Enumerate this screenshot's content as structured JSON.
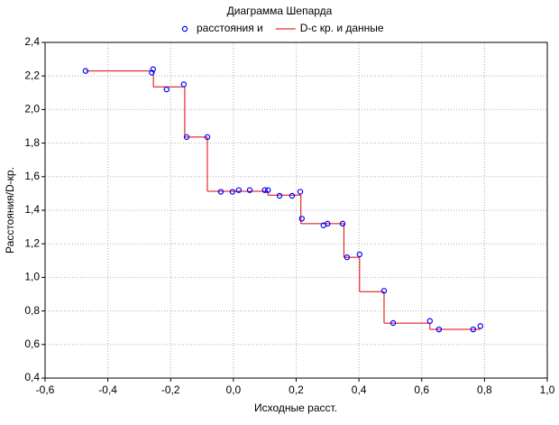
{
  "chart_data": {
    "type": "scatter",
    "title": "Диаграмма Шепарда",
    "x_label": "Исходные расст.",
    "y_label": "Расстояния/D-кр.",
    "xlim": [
      -0.6,
      1.0
    ],
    "ylim": [
      0.4,
      2.4
    ],
    "xticks": [
      {
        "value": -0.6,
        "label": "-0,6"
      },
      {
        "value": -0.4,
        "label": "-0,4"
      },
      {
        "value": -0.2,
        "label": "-0,2"
      },
      {
        "value": 0.0,
        "label": "0,0"
      },
      {
        "value": 0.2,
        "label": "0,2"
      },
      {
        "value": 0.4,
        "label": "0,4"
      },
      {
        "value": 0.6,
        "label": "0,6"
      },
      {
        "value": 0.8,
        "label": "0,8"
      },
      {
        "value": 1.0,
        "label": "1,0"
      }
    ],
    "yticks": [
      {
        "value": 0.4,
        "label": "0,4"
      },
      {
        "value": 0.6,
        "label": "0,6"
      },
      {
        "value": 0.8,
        "label": "0,8"
      },
      {
        "value": 1.0,
        "label": "1,0"
      },
      {
        "value": 1.2,
        "label": "1,2"
      },
      {
        "value": 1.4,
        "label": "1,4"
      },
      {
        "value": 1.6,
        "label": "1,6"
      },
      {
        "value": 1.8,
        "label": "1,8"
      },
      {
        "value": 2.0,
        "label": "2,0"
      },
      {
        "value": 2.2,
        "label": "2,2"
      },
      {
        "value": 2.4,
        "label": "2,4"
      }
    ],
    "grid": true,
    "legend": "top",
    "series": [
      {
        "name": "расстояния и",
        "kind": "points",
        "color": "#0000ff",
        "x": [
          -0.471,
          -0.256,
          -0.26,
          -0.213,
          -0.158,
          -0.149,
          -0.083,
          -0.04,
          -0.003,
          0.017,
          0.052,
          0.1,
          0.11,
          0.147,
          0.187,
          0.213,
          0.218,
          0.287,
          0.3,
          0.348,
          0.362,
          0.402,
          0.48,
          0.509,
          0.626,
          0.655,
          0.764,
          0.787
        ],
        "values": [
          2.23,
          2.24,
          2.22,
          2.12,
          2.15,
          1.836,
          1.836,
          1.51,
          1.51,
          1.52,
          1.52,
          1.52,
          1.52,
          1.486,
          1.486,
          1.51,
          1.35,
          1.31,
          1.32,
          1.32,
          1.12,
          1.137,
          0.92,
          0.728,
          0.74,
          0.69,
          0.69,
          0.71
        ]
      },
      {
        "name": "D-с кр. и данные",
        "kind": "step",
        "color": "#e00000",
        "x": [
          -0.47,
          -0.255,
          -0.155,
          -0.083,
          0.11,
          0.215,
          0.352,
          0.402,
          0.48,
          0.626,
          0.787
        ],
        "values": [
          2.23,
          2.135,
          1.836,
          1.513,
          1.49,
          1.32,
          1.12,
          0.915,
          0.727,
          0.69,
          0.69
        ]
      }
    ]
  }
}
